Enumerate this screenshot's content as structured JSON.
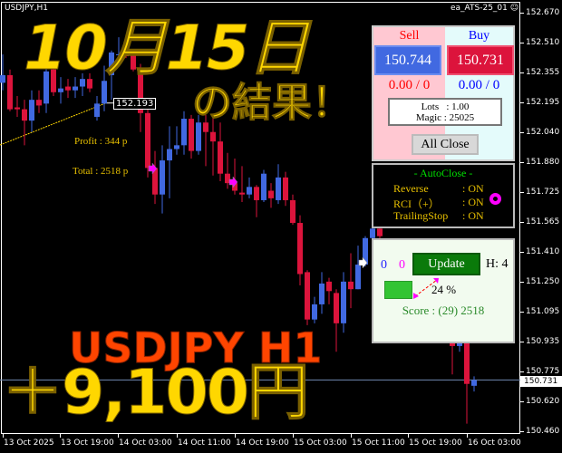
{
  "window": {
    "symbol_title": "USDJPY,H1",
    "ea_name": "ea_ATS-25_01",
    "ea_icon": "smiley-icon"
  },
  "overlay": {
    "date_heading": "10月15日",
    "result_heading": "の結果！",
    "pair_heading": "USDJPY H1",
    "profit_heading": "＋9,100円"
  },
  "chart_info": {
    "profit": "Profit : 344 p",
    "total": "Total : 2518 p",
    "line_price_label": "152.193",
    "current_price_label": "150.731"
  },
  "price_axis": [
    "152.670",
    "152.510",
    "152.355",
    "152.195",
    "152.040",
    "151.880",
    "151.725",
    "151.565",
    "151.410",
    "151.250",
    "151.095",
    "150.935",
    "150.775",
    "150.620",
    "150.460"
  ],
  "time_axis": [
    "13 Oct 2025",
    "13 Oct 19:00",
    "14 Oct 03:00",
    "14 Oct 11:00",
    "14 Oct 19:00",
    "15 Oct 03:00",
    "15 Oct 11:00",
    "15 Oct 19:00",
    "16 Oct 03:00"
  ],
  "colors": {
    "bull": "#4169e1",
    "bear": "#dc143c",
    "heading_yellow": "#ffd700",
    "heading_orange": "#ff4500",
    "info_text": "#e8c000"
  },
  "chart_data": {
    "type": "candlestick",
    "ylim": [
      150.46,
      152.67
    ],
    "current_price": 150.731,
    "candles_ohlc": [
      [
        152.3,
        152.45,
        152.26,
        152.34
      ],
      [
        152.34,
        152.37,
        152.15,
        152.16
      ],
      [
        152.17,
        152.23,
        152.12,
        152.16
      ],
      [
        152.16,
        152.21,
        151.97,
        152.1
      ],
      [
        152.1,
        152.26,
        152.04,
        152.21
      ],
      [
        152.21,
        152.26,
        152.14,
        152.18
      ],
      [
        152.19,
        152.45,
        152.14,
        152.36
      ],
      [
        152.37,
        152.4,
        152.23,
        152.25
      ],
      [
        152.25,
        152.33,
        152.19,
        152.27
      ],
      [
        152.28,
        152.32,
        152.22,
        152.26
      ],
      [
        152.26,
        152.33,
        152.22,
        152.28
      ],
      [
        152.28,
        152.35,
        152.23,
        152.32
      ],
      [
        152.32,
        152.35,
        152.25,
        152.27
      ],
      [
        152.12,
        152.23,
        152.1,
        152.19
      ],
      [
        152.19,
        152.39,
        152.15,
        152.31
      ],
      [
        152.34,
        152.47,
        152.21,
        152.46
      ],
      [
        152.45,
        152.54,
        152.42,
        152.45
      ],
      [
        152.45,
        152.46,
        152.43,
        152.44
      ],
      [
        152.45,
        152.46,
        152.36,
        152.37
      ],
      [
        152.37,
        152.4,
        152.04,
        152.14
      ],
      [
        152.14,
        152.16,
        151.8,
        151.85
      ],
      [
        151.85,
        151.94,
        151.66,
        151.71
      ],
      [
        151.71,
        151.97,
        151.61,
        151.89
      ],
      [
        151.89,
        152.07,
        151.69,
        151.95
      ],
      [
        151.95,
        152.07,
        151.92,
        151.97
      ],
      [
        151.97,
        152.15,
        151.92,
        152.11
      ],
      [
        152.11,
        152.13,
        151.9,
        151.94
      ],
      [
        151.94,
        152.13,
        151.92,
        152.09
      ],
      [
        152.09,
        152.13,
        151.86,
        152.04
      ],
      [
        152.04,
        152.13,
        151.81,
        151.99
      ],
      [
        151.99,
        152.09,
        151.78,
        151.82
      ],
      [
        151.82,
        151.93,
        151.74,
        151.77
      ],
      [
        151.77,
        151.9,
        151.71,
        151.73
      ],
      [
        151.72,
        151.86,
        151.67,
        151.71
      ],
      [
        151.71,
        151.8,
        151.69,
        151.75
      ],
      [
        151.75,
        151.76,
        151.59,
        151.68
      ],
      [
        151.68,
        151.84,
        151.67,
        151.82
      ],
      [
        151.73,
        151.77,
        151.64,
        151.69
      ],
      [
        151.68,
        151.87,
        151.66,
        151.8
      ],
      [
        151.8,
        151.83,
        151.65,
        151.68
      ],
      [
        151.68,
        151.71,
        151.55,
        151.56
      ],
      [
        151.56,
        151.6,
        151.23,
        151.29
      ],
      [
        151.3,
        151.31,
        151.02,
        151.05
      ],
      [
        151.05,
        151.17,
        151.03,
        151.13
      ],
      [
        151.13,
        151.3,
        151.08,
        151.24
      ],
      [
        151.25,
        151.27,
        151.13,
        151.2
      ],
      [
        151.19,
        151.21,
        150.88,
        151.03
      ],
      [
        151.03,
        151.3,
        150.98,
        151.25
      ],
      [
        151.25,
        151.4,
        151.11,
        151.21
      ],
      [
        151.21,
        151.44,
        151.21,
        151.34
      ],
      [
        151.34,
        151.49,
        151.33,
        151.48
      ],
      [
        151.48,
        151.56,
        151.45,
        151.53
      ],
      [
        151.53,
        151.58,
        151.46,
        151.49
      ],
      null,
      null,
      null,
      null,
      null,
      null,
      null,
      null,
      null,
      [
        150.93,
        150.96,
        150.76,
        150.91
      ],
      [
        150.91,
        150.95,
        150.88,
        150.93
      ],
      [
        150.93,
        150.95,
        150.5,
        150.71
      ],
      [
        150.7,
        150.75,
        150.67,
        150.73
      ]
    ],
    "trend_line_end_price": 152.193
  },
  "order_panel": {
    "sell_label": "Sell",
    "buy_label": "Buy",
    "sell_price": "150.744",
    "buy_price": "150.731",
    "sell_pl": "0.00 / 0",
    "buy_pl": "0.00 / 0",
    "lots": "Lots   : 1.00",
    "magic": "Magic : 25025",
    "all_close": "All Close"
  },
  "autoclose_panel": {
    "title": "- AutoClose -",
    "rows": [
      {
        "label": "Reverse",
        "value": ": ON"
      },
      {
        "label": "RCI（+）",
        "value": ": ON"
      },
      {
        "label": "TrailingStop",
        "value": ": ON"
      }
    ],
    "status_icon": "ring-icon"
  },
  "score_panel": {
    "count_blue": "0",
    "count_magenta": "0",
    "update": "Update",
    "h": "H: 4",
    "progress_percent": 24,
    "progress_label": "24 %",
    "score": "Score : (29) 2518"
  }
}
